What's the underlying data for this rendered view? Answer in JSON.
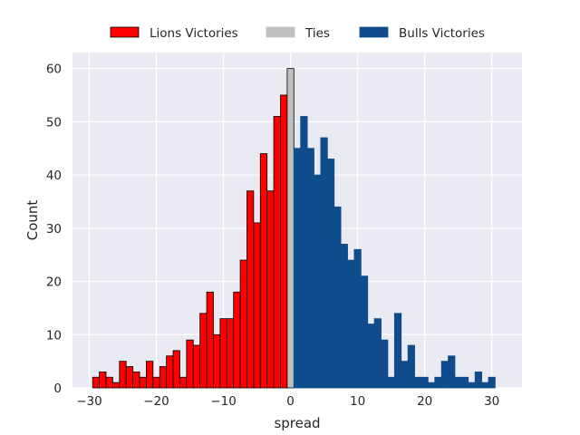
{
  "chart_data": {
    "type": "bar",
    "xlabel": "spread",
    "ylabel": "Count",
    "xlim": [
      -32.5,
      34.5
    ],
    "ylim": [
      0,
      63
    ],
    "grid": true,
    "legend_position": "top-center",
    "xticks": [
      -30,
      -20,
      -10,
      0,
      10,
      20,
      30
    ],
    "yticks": [
      0,
      10,
      20,
      30,
      40,
      50,
      60
    ],
    "series": [
      {
        "name": "Lions Victories",
        "color": "#ff0000",
        "edgecolor": "#000000",
        "x": [
          -29,
          -28,
          -27,
          -26,
          -25,
          -24,
          -23,
          -22,
          -21,
          -20,
          -19,
          -18,
          -17,
          -16,
          -15,
          -14,
          -13,
          -12,
          -11,
          -10,
          -9,
          -8,
          -7,
          -6,
          -5,
          -4,
          -3,
          -2,
          -1
        ],
        "values": [
          2,
          3,
          2,
          1,
          5,
          4,
          3,
          2,
          5,
          2,
          4,
          6,
          7,
          2,
          9,
          8,
          14,
          18,
          10,
          13,
          13,
          18,
          24,
          37,
          31,
          44,
          37,
          51,
          55
        ]
      },
      {
        "name": "Ties",
        "color": "#c0c0c0",
        "edgecolor": "#000000",
        "x": [
          0
        ],
        "values": [
          60
        ]
      },
      {
        "name": "Bulls Victories",
        "color": "#0f4c8c",
        "edgecolor": "#0f4c8c",
        "x": [
          1,
          2,
          3,
          4,
          5,
          6,
          7,
          8,
          9,
          10,
          11,
          12,
          13,
          14,
          15,
          16,
          17,
          18,
          19,
          20,
          21,
          22,
          23,
          24,
          25,
          26,
          27,
          28,
          29,
          30,
          31
        ],
        "values": [
          45,
          51,
          45,
          40,
          47,
          43,
          34,
          27,
          24,
          26,
          21,
          12,
          13,
          9,
          2,
          14,
          5,
          8,
          2,
          2,
          1,
          2,
          5,
          6,
          2,
          2,
          1,
          3,
          1,
          2,
          0
        ]
      }
    ]
  }
}
